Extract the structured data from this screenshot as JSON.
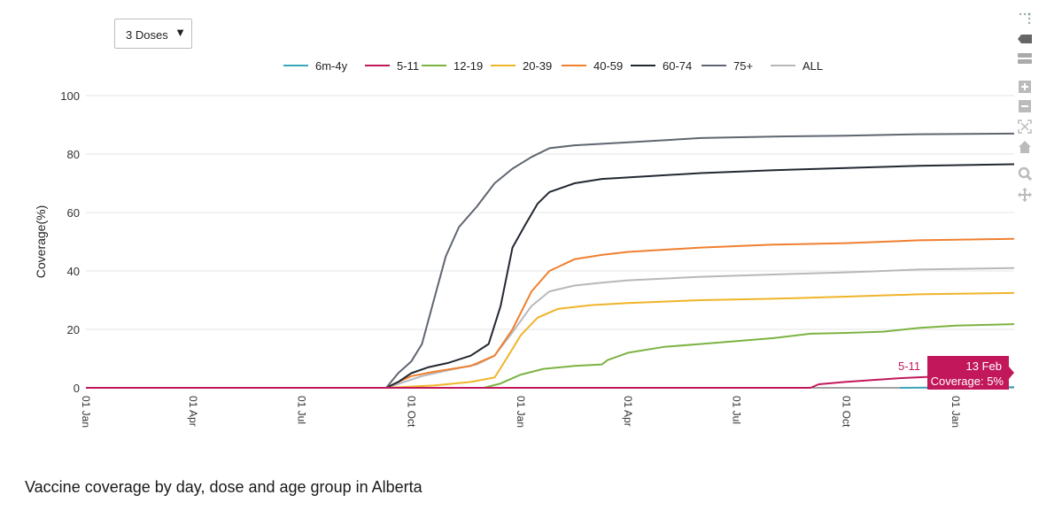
{
  "dose_select": {
    "value": "3 Doses",
    "options": [
      "3 Doses"
    ]
  },
  "caption": "Vaccine coverage by day, dose and age group in Alberta",
  "hover": {
    "series": "5-11",
    "date": "13 Feb",
    "value_label": "Coverage: 5%",
    "color": "#c2185b"
  },
  "modebar_icons": [
    "camera-icon",
    "tag-icon",
    "compare-icon",
    "zoom-in-icon",
    "zoom-out-icon",
    "autoscale-icon",
    "home-icon",
    "zoom-icon",
    "pan-icon"
  ],
  "chart_data": {
    "type": "line",
    "ylabel": "Coverage(%)",
    "xlabel": "",
    "ylim": [
      0,
      100
    ],
    "yticks": [
      0,
      20,
      40,
      60,
      80,
      100
    ],
    "xlim": [
      "2021-01-01",
      "2023-02-19"
    ],
    "xticks": [
      {
        "date": "2021-01-01",
        "label": "01 Jan"
      },
      {
        "date": "2021-04-01",
        "label": "01 Apr"
      },
      {
        "date": "2021-07-01",
        "label": "01 Jul"
      },
      {
        "date": "2021-10-01",
        "label": "01 Oct"
      },
      {
        "date": "2022-01-01",
        "label": "01 Jan"
      },
      {
        "date": "2022-04-01",
        "label": "01 Apr"
      },
      {
        "date": "2022-07-01",
        "label": "01 Jul"
      },
      {
        "date": "2022-10-01",
        "label": "01 Oct"
      },
      {
        "date": "2023-01-01",
        "label": "01 Jan"
      }
    ],
    "grid": "horizontal",
    "legend_position": "top",
    "series": [
      {
        "name": "6m-4y",
        "color": "#3aa6b9",
        "points": [
          [
            "2022-11-15",
            0
          ],
          [
            "2023-02-13",
            0.2
          ],
          [
            "2023-02-19",
            0.2
          ]
        ]
      },
      {
        "name": "5-11",
        "color": "#c2185b",
        "points": [
          [
            "2021-01-01",
            0
          ],
          [
            "2022-09-01",
            0
          ],
          [
            "2022-09-08",
            1.2
          ],
          [
            "2022-09-30",
            2
          ],
          [
            "2022-11-15",
            3.3
          ],
          [
            "2023-02-13",
            5
          ]
        ]
      },
      {
        "name": "12-19",
        "color": "#7cb342",
        "points": [
          [
            "2021-01-01",
            0
          ],
          [
            "2021-12-01",
            0
          ],
          [
            "2021-12-15",
            1.5
          ],
          [
            "2022-01-01",
            4.5
          ],
          [
            "2022-01-20",
            6.5
          ],
          [
            "2022-02-15",
            7.5
          ],
          [
            "2022-03-10",
            8
          ],
          [
            "2022-03-15",
            9.5
          ],
          [
            "2022-04-01",
            12
          ],
          [
            "2022-05-01",
            14
          ],
          [
            "2022-06-01",
            15
          ],
          [
            "2022-07-01",
            16
          ],
          [
            "2022-08-01",
            17
          ],
          [
            "2022-09-01",
            18.5
          ],
          [
            "2022-10-01",
            18.8
          ],
          [
            "2022-11-01",
            19.2
          ],
          [
            "2022-12-01",
            20.5
          ],
          [
            "2023-01-01",
            21.3
          ],
          [
            "2023-02-19",
            21.8
          ]
        ]
      },
      {
        "name": "20-39",
        "color": "#f0b429",
        "points": [
          [
            "2021-01-01",
            0
          ],
          [
            "2021-09-10",
            0
          ],
          [
            "2021-10-20",
            0.8
          ],
          [
            "2021-11-20",
            2
          ],
          [
            "2021-12-10",
            3.5
          ],
          [
            "2021-12-20",
            10
          ],
          [
            "2022-01-01",
            18
          ],
          [
            "2022-01-15",
            24
          ],
          [
            "2022-02-01",
            27
          ],
          [
            "2022-03-01",
            28.3
          ],
          [
            "2022-04-01",
            29
          ],
          [
            "2022-06-01",
            30
          ],
          [
            "2022-08-01",
            30.5
          ],
          [
            "2022-10-01",
            31.2
          ],
          [
            "2022-12-01",
            32
          ],
          [
            "2023-02-19",
            32.5
          ]
        ]
      },
      {
        "name": "40-59",
        "color": "#f07f2e",
        "points": [
          [
            "2021-01-01",
            0
          ],
          [
            "2021-09-10",
            0
          ],
          [
            "2021-09-20",
            2
          ],
          [
            "2021-10-01",
            4
          ],
          [
            "2021-10-20",
            5.5
          ],
          [
            "2021-11-20",
            7.5
          ],
          [
            "2021-12-10",
            11
          ],
          [
            "2021-12-25",
            20
          ],
          [
            "2022-01-10",
            33
          ],
          [
            "2022-01-25",
            40
          ],
          [
            "2022-02-15",
            44
          ],
          [
            "2022-03-10",
            45.5
          ],
          [
            "2022-04-01",
            46.5
          ],
          [
            "2022-06-01",
            48
          ],
          [
            "2022-08-01",
            49
          ],
          [
            "2022-10-01",
            49.5
          ],
          [
            "2022-12-01",
            50.5
          ],
          [
            "2023-02-19",
            51
          ]
        ]
      },
      {
        "name": "60-74",
        "color": "#222831",
        "points": [
          [
            "2021-01-01",
            0
          ],
          [
            "2021-09-10",
            0
          ],
          [
            "2021-09-20",
            2
          ],
          [
            "2021-10-01",
            5
          ],
          [
            "2021-10-15",
            7
          ],
          [
            "2021-11-01",
            8.5
          ],
          [
            "2021-11-20",
            11
          ],
          [
            "2021-12-05",
            15
          ],
          [
            "2021-12-15",
            28
          ],
          [
            "2021-12-25",
            48
          ],
          [
            "2022-01-05",
            56
          ],
          [
            "2022-01-15",
            63
          ],
          [
            "2022-01-25",
            67
          ],
          [
            "2022-02-15",
            70
          ],
          [
            "2022-03-10",
            71.5
          ],
          [
            "2022-04-01",
            72
          ],
          [
            "2022-06-01",
            73.5
          ],
          [
            "2022-08-01",
            74.5
          ],
          [
            "2022-10-01",
            75.2
          ],
          [
            "2022-12-01",
            76
          ],
          [
            "2023-02-19",
            76.5
          ]
        ]
      },
      {
        "name": "75+",
        "color": "#5f6670",
        "points": [
          [
            "2021-01-01",
            0
          ],
          [
            "2021-09-10",
            0
          ],
          [
            "2021-09-20",
            5
          ],
          [
            "2021-10-01",
            9
          ],
          [
            "2021-10-10",
            15
          ],
          [
            "2021-10-20",
            30
          ],
          [
            "2021-10-30",
            45
          ],
          [
            "2021-11-10",
            55
          ],
          [
            "2021-11-25",
            62
          ],
          [
            "2021-12-10",
            70
          ],
          [
            "2021-12-25",
            75
          ],
          [
            "2022-01-10",
            79
          ],
          [
            "2022-01-25",
            82
          ],
          [
            "2022-02-15",
            83
          ],
          [
            "2022-04-01",
            84
          ],
          [
            "2022-06-01",
            85.5
          ],
          [
            "2022-08-01",
            86
          ],
          [
            "2022-10-01",
            86.3
          ],
          [
            "2022-12-01",
            86.8
          ],
          [
            "2023-02-19",
            87
          ]
        ]
      },
      {
        "name": "ALL",
        "color": "#b8b8bc",
        "points": [
          [
            "2021-01-01",
            0
          ],
          [
            "2021-09-10",
            0
          ],
          [
            "2021-09-25",
            2
          ],
          [
            "2021-10-10",
            4
          ],
          [
            "2021-11-01",
            6
          ],
          [
            "2021-11-25",
            8
          ],
          [
            "2021-12-10",
            11
          ],
          [
            "2021-12-25",
            19
          ],
          [
            "2022-01-10",
            28
          ],
          [
            "2022-01-25",
            33
          ],
          [
            "2022-02-15",
            35
          ],
          [
            "2022-03-10",
            36
          ],
          [
            "2022-04-01",
            36.8
          ],
          [
            "2022-06-01",
            38
          ],
          [
            "2022-08-01",
            38.8
          ],
          [
            "2022-10-01",
            39.5
          ],
          [
            "2022-12-01",
            40.5
          ],
          [
            "2023-02-19",
            41
          ]
        ]
      }
    ]
  }
}
